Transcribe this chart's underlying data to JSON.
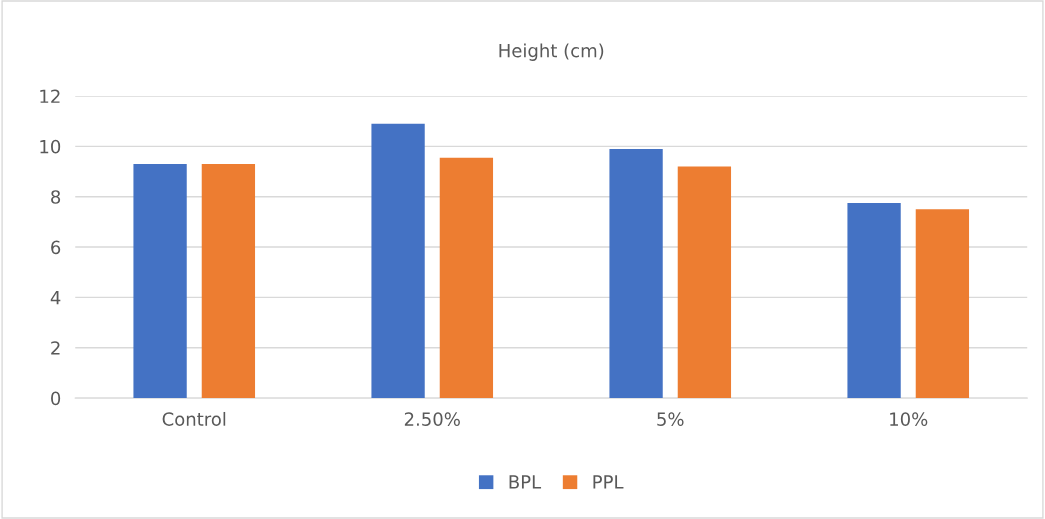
{
  "chart_data": {
    "type": "bar",
    "title": "Height (cm)",
    "categories": [
      "Control",
      "2.50%",
      "5%",
      "10%"
    ],
    "series": [
      {
        "name": "BPL",
        "color": "#4472c4",
        "values": [
          9.3,
          10.9,
          9.9,
          7.75
        ]
      },
      {
        "name": "PPL",
        "color": "#ed7d31",
        "values": [
          9.3,
          9.55,
          9.2,
          7.5
        ]
      }
    ],
    "ylim": [
      0,
      12
    ],
    "yticks": [
      0,
      2,
      4,
      6,
      8,
      10,
      12
    ],
    "grid": "y",
    "legend": "bottom"
  }
}
